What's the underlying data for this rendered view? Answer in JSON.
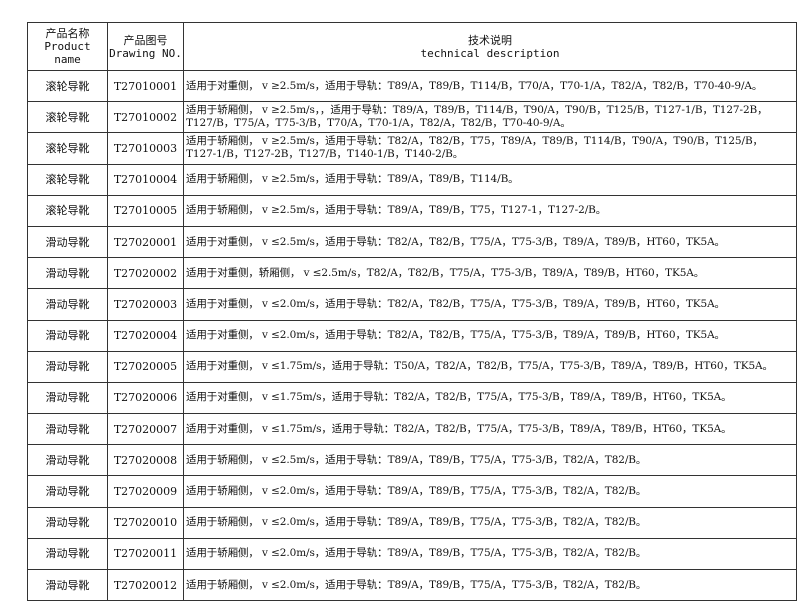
{
  "header": {
    "name_cn": "产品名称",
    "name_en": "Product name",
    "drawing_cn": "产品图号",
    "drawing_en": "Drawing NO.",
    "desc_cn": "技术说明",
    "desc_en": "technical description"
  },
  "rows": [
    {
      "name": "滚轮导靴",
      "no": "T27010001",
      "desc": [
        "适用于对重侧， v ≥2.5m/s，适用于导轨：T89/A，T89/B，T114/B，T70/A，T70-1/A，T82/A，T82/B，T70-40-9/A。"
      ]
    },
    {
      "name": "滚轮导靴",
      "no": "T27010002",
      "desc": [
        "适用于轿厢侧， v ≥2.5m/s，，适用于导轨：T89/A，T89/B，T114/B，T90/A，T90/B，T125/B，T127-1/B，T127-2B，",
        "T127/B，T75/A，T75-3/B，T70/A，T70-1/A，T82/A，T82/B，T70-40-9/A。"
      ]
    },
    {
      "name": "滚轮导靴",
      "no": "T27010003",
      "desc": [
        "适用于轿厢侧， v ≥2.5m/s，适用于导轨：T82/A，T82/B，T75，T89/A，T89/B，T114/B，T90/A，T90/B，T125/B，",
        "T127-1/B，T127-2B，T127/B，T140-1/B，T140-2/B。"
      ]
    },
    {
      "name": "滚轮导靴",
      "no": "T27010004",
      "desc": [
        "适用于轿厢侧， v ≥2.5m/s，适用于导轨：T89/A，T89/B，T114/B。"
      ]
    },
    {
      "name": "滚轮导靴",
      "no": "T27010005",
      "desc": [
        "适用于轿厢侧， v ≥2.5m/s，适用于导轨：T89/A，T89/B，T75，T127-1，T127-2/B。"
      ]
    },
    {
      "name": "滑动导靴",
      "no": "T27020001",
      "desc": [
        "适用于对重侧， v ≤2.5m/s，适用于导轨：T82/A，T82/B，T75/A，T75-3/B，T89/A，T89/B，HT60，TK5A。"
      ]
    },
    {
      "name": "滑动导靴",
      "no": "T27020002",
      "desc": [
        "适用于对重侧，轿厢侧， v ≤2.5m/s，T82/A，T82/B，T75/A，T75-3/B，T89/A，T89/B，HT60，TK5A。"
      ]
    },
    {
      "name": "滑动导靴",
      "no": "T27020003",
      "desc": [
        "适用于对重侧， v ≤2.0m/s，适用于导轨：T82/A，T82/B，T75/A，T75-3/B，T89/A，T89/B，HT60，TK5A。"
      ]
    },
    {
      "name": "滑动导靴",
      "no": "T27020004",
      "desc": [
        "适用于对重侧， v ≤2.0m/s，适用于导轨：T82/A，T82/B，T75/A，T75-3/B，T89/A，T89/B，HT60，TK5A。"
      ]
    },
    {
      "name": "滑动导靴",
      "no": "T27020005",
      "desc": [
        "适用于对重侧， v ≤1.75m/s，适用于导轨：T50/A，T82/A，T82/B，T75/A，T75-3/B，T89/A，T89/B，HT60，TK5A。"
      ]
    },
    {
      "name": "滑动导靴",
      "no": "T27020006",
      "desc": [
        "适用于对重侧， v ≤1.75m/s，适用于导轨：T82/A，T82/B，T75/A，T75-3/B，T89/A，T89/B，HT60，TK5A。"
      ]
    },
    {
      "name": "滑动导靴",
      "no": "T27020007",
      "desc": [
        "适用于对重侧， v ≤1.75m/s，适用于导轨：T82/A，T82/B，T75/A，T75-3/B，T89/A，T89/B，HT60，TK5A。"
      ]
    },
    {
      "name": "滑动导靴",
      "no": "T27020008",
      "desc": [
        "适用于轿厢侧， v ≤2.5m/s，适用于导轨：T89/A，T89/B，T75/A，T75-3/B，T82/A，T82/B。"
      ]
    },
    {
      "name": "滑动导靴",
      "no": "T27020009",
      "desc": [
        "适用于轿厢侧， v ≤2.0m/s，适用于导轨：T89/A，T89/B，T75/A，T75-3/B，T82/A，T82/B。"
      ]
    },
    {
      "name": "滑动导靴",
      "no": "T27020010",
      "desc": [
        "适用于轿厢侧， v ≤2.0m/s，适用于导轨：T89/A，T89/B，T75/A，T75-3/B，T82/A，T82/B。"
      ]
    },
    {
      "name": "滑动导靴",
      "no": "T27020011",
      "desc": [
        "适用于轿厢侧， v ≤2.0m/s，适用于导轨：T89/A，T89/B，T75/A，T75-3/B，T82/A，T82/B。"
      ]
    },
    {
      "name": "滑动导靴",
      "no": "T27020012",
      "desc": [
        "适用于轿厢侧， v ≤2.0m/s，适用于导轨：T89/A，T89/B，T75/A，T75-3/B，T82/A，T82/B。"
      ]
    }
  ]
}
